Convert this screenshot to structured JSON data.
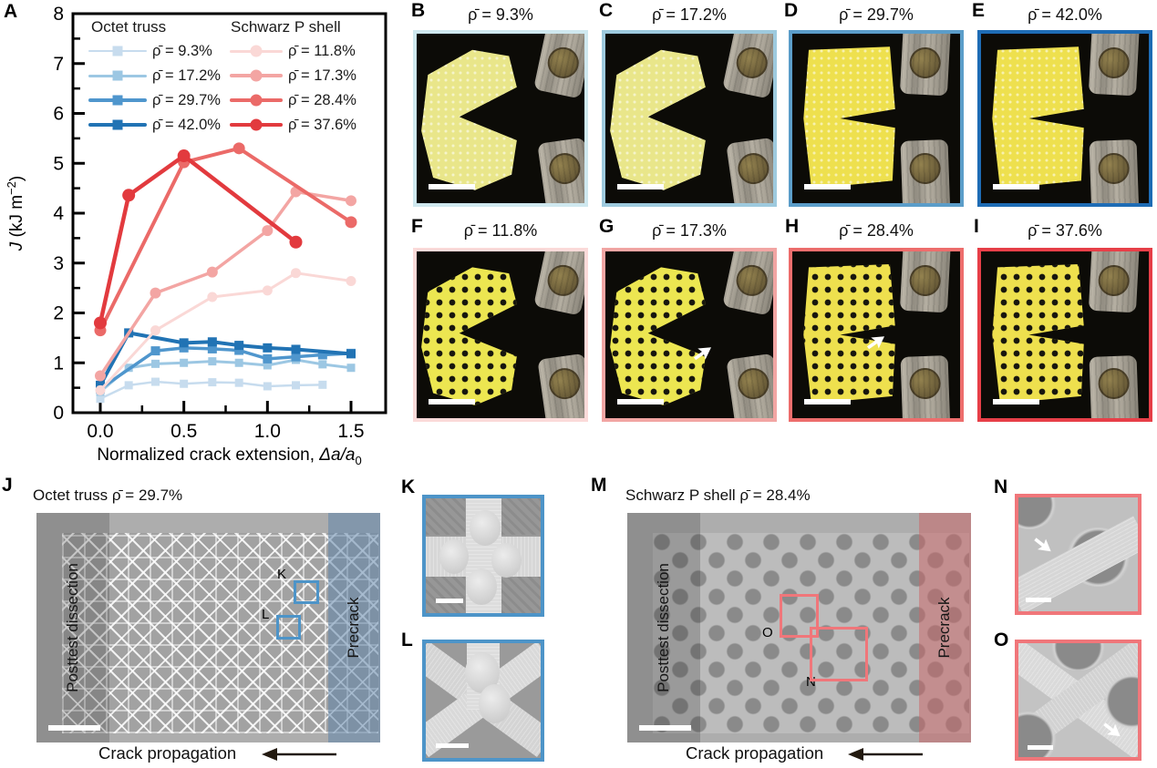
{
  "figure_labels": {
    "A": "A",
    "B": "B",
    "C": "C",
    "D": "D",
    "E": "E",
    "F": "F",
    "G": "G",
    "H": "H",
    "I": "I",
    "J": "J",
    "K": "K",
    "L": "L",
    "M": "M",
    "N": "N",
    "O": "O"
  },
  "chart": {
    "legend_header_octet": "Octet truss",
    "legend_header_schwarz": "Schwarz P shell"
  },
  "chart_data": {
    "type": "line",
    "title": "",
    "xlabel": "Normalized crack extension, Δa/a₀",
    "xlabel_prefix": "Normalized crack extension, ",
    "xlabel_math": "Δa/a",
    "xlabel_sub": "0",
    "ylabel": "J (kJ m−2)",
    "ylabel_var": "J",
    "ylabel_mid": " (kJ m",
    "ylabel_sup": "−2",
    "ylabel_end": ")",
    "xlim": [
      -0.16,
      1.71
    ],
    "ylim": [
      0,
      8
    ],
    "x_tick_values": [
      0,
      0.5,
      1.0,
      1.5
    ],
    "x_tick_labels": [
      "0.0",
      "0.5",
      "1.0",
      "1.5"
    ],
    "x_minor_ticks": [
      0.25,
      0.75,
      1.25
    ],
    "y_tick_values": [
      0,
      1,
      2,
      3,
      4,
      5,
      6,
      7,
      8
    ],
    "y_tick_labels": [
      "0",
      "1",
      "2",
      "3",
      "4",
      "5",
      "6",
      "7",
      "8"
    ],
    "y_minor_step": 0.5,
    "grid": false,
    "legend_position": "top-left-inside",
    "series": [
      {
        "name": "Octet truss ρ̄ = 9.3%",
        "legend": "ρ̄ = 9.3%",
        "group": "Octet truss",
        "color": "#c7dcee",
        "marker": "square",
        "lw": 2.5,
        "ms": 9,
        "x": [
          0,
          0.17,
          0.33,
          0.5,
          0.67,
          0.83,
          1.0,
          1.17,
          1.33
        ],
        "y": [
          0.28,
          0.55,
          0.62,
          0.58,
          0.61,
          0.6,
          0.53,
          0.55,
          0.56
        ]
      },
      {
        "name": "Octet truss ρ̄ = 17.2%",
        "legend": "ρ̄ = 17.2%",
        "group": "Octet truss",
        "color": "#9cc7e3",
        "marker": "square",
        "lw": 3,
        "ms": 9,
        "x": [
          0,
          0.17,
          0.33,
          0.5,
          0.67,
          0.83,
          1.0,
          1.17,
          1.33,
          1.5
        ],
        "y": [
          0.42,
          0.9,
          0.98,
          1.0,
          1.03,
          1.0,
          0.95,
          1.06,
          0.97,
          0.9
        ]
      },
      {
        "name": "Octet truss ρ̄ = 29.7%",
        "legend": "ρ̄ = 29.7%",
        "group": "Octet truss",
        "color": "#4f96cd",
        "marker": "square",
        "lw": 3.5,
        "ms": 10,
        "x": [
          0,
          0.33,
          0.5,
          0.67,
          0.83,
          1.0,
          1.17,
          1.33,
          1.5
        ],
        "y": [
          0.48,
          1.24,
          1.3,
          1.28,
          1.25,
          1.08,
          1.12,
          1.16,
          1.19
        ]
      },
      {
        "name": "Octet truss ρ̄ = 42.0%",
        "legend": "ρ̄ = 42.0%",
        "group": "Octet truss",
        "color": "#2173b4",
        "marker": "square",
        "lw": 4,
        "ms": 10,
        "x": [
          0,
          0.17,
          0.5,
          0.67,
          0.83,
          1.0,
          1.17,
          1.5
        ],
        "y": [
          0.55,
          1.6,
          1.4,
          1.42,
          1.35,
          1.3,
          1.27,
          1.18
        ]
      },
      {
        "name": "Schwarz P shell ρ̄ = 11.8%",
        "legend": "ρ̄ = 11.8%",
        "group": "Schwarz P shell",
        "color": "#fad8d6",
        "marker": "circle",
        "lw": 3,
        "ms": 11,
        "x": [
          0,
          0.33,
          0.67,
          1.0,
          1.17,
          1.5
        ],
        "y": [
          0.45,
          1.65,
          2.32,
          2.45,
          2.8,
          2.64
        ]
      },
      {
        "name": "Schwarz P shell ρ̄ = 17.3%",
        "legend": "ρ̄ = 17.3%",
        "group": "Schwarz P shell",
        "color": "#f3a5a3",
        "marker": "circle",
        "lw": 3.5,
        "ms": 12,
        "x": [
          0,
          0.33,
          0.67,
          1.0,
          1.17,
          1.5
        ],
        "y": [
          0.74,
          2.4,
          2.82,
          3.65,
          4.43,
          4.25
        ]
      },
      {
        "name": "Schwarz P shell ρ̄ = 28.4%",
        "legend": "ρ̄ = 28.4%",
        "group": "Schwarz P shell",
        "color": "#eb6a68",
        "marker": "circle",
        "lw": 4,
        "ms": 13,
        "x": [
          0,
          0.5,
          0.83,
          1.5
        ],
        "y": [
          1.65,
          5.02,
          5.3,
          3.82
        ]
      },
      {
        "name": "Schwarz P shell ρ̄ = 37.6%",
        "legend": "ρ̄ = 37.6%",
        "group": "Schwarz P shell",
        "color": "#e23a3e",
        "marker": "circle",
        "lw": 4.5,
        "ms": 14,
        "x": [
          0,
          0.17,
          0.5,
          1.17
        ],
        "y": [
          1.8,
          4.36,
          5.15,
          3.42
        ]
      }
    ]
  },
  "photos": {
    "items": [
      {
        "label": "B",
        "caption": "ρ̄ = 9.3%",
        "border": "#cfe8ef",
        "family": "octet",
        "shape": "chevron"
      },
      {
        "label": "C",
        "caption": "ρ̄ = 17.2%",
        "border": "#9ecade",
        "family": "octet",
        "shape": "chevron"
      },
      {
        "label": "D",
        "caption": "ρ̄ = 29.7%",
        "border": "#5b9dc9",
        "family": "octet",
        "shape": "slit"
      },
      {
        "label": "E",
        "caption": "ρ̄ = 42.0%",
        "border": "#1e6cb5",
        "family": "octet",
        "shape": "slit"
      },
      {
        "label": "F",
        "caption": "ρ̄ = 11.8%",
        "border": "#fbdad9",
        "family": "schwarz",
        "shape": "chevron"
      },
      {
        "label": "G",
        "caption": "ρ̄ = 17.3%",
        "border": "#f2a5a3",
        "family": "schwarz",
        "shape": "chevron",
        "arrow": true
      },
      {
        "label": "H",
        "caption": "ρ̄ = 28.4%",
        "border": "#ed6d6c",
        "family": "schwarz",
        "shape": "slit",
        "arrow": true
      },
      {
        "label": "I",
        "caption": "ρ̄ = 37.6%",
        "border": "#e73f48",
        "family": "schwarz",
        "shape": "slit"
      }
    ]
  },
  "sem": {
    "left": {
      "label": "J",
      "title": "Octet truss ρ̄ = 29.7%",
      "region_left": "Posttest dissection",
      "region_right": "Precrack",
      "caption": "Crack propagation",
      "box_labels": [
        "K",
        "L"
      ],
      "accent": "#4d94c8"
    },
    "right": {
      "label": "M",
      "title": "Schwarz P shell ρ̄ = 28.4%",
      "region_left": "Posttest dissection",
      "region_right": "Precrack",
      "caption": "Crack propagation",
      "box_labels": [
        "O",
        "N"
      ],
      "accent": "#f0767a"
    },
    "insets": [
      {
        "label": "K",
        "border": "#4d94c8"
      },
      {
        "label": "L",
        "border": "#4d94c8"
      },
      {
        "label": "N",
        "border": "#f0767a",
        "arrow": true
      },
      {
        "label": "O",
        "border": "#f0767a",
        "arrow": true
      }
    ]
  }
}
